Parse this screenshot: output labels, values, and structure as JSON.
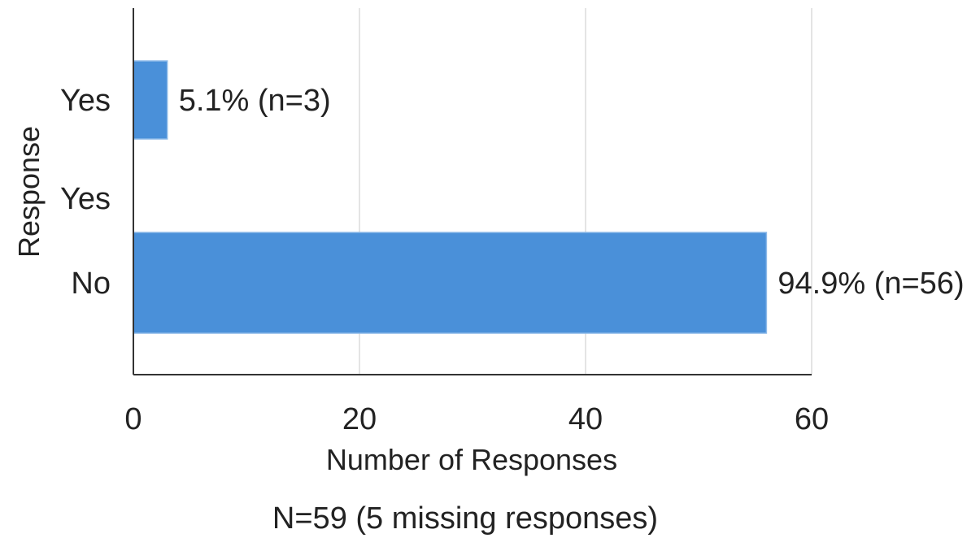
{
  "chart_data": {
    "type": "bar",
    "orientation": "horizontal",
    "categories": [
      "Yes",
      "Yes",
      "No"
    ],
    "values": [
      3,
      null,
      56
    ],
    "data_labels": [
      "5.1% (n=3)",
      "",
      "94.9% (n=56)"
    ],
    "xlabel": "Number of Responses",
    "ylabel": "Response",
    "xlim": [
      0,
      60
    ],
    "xticks": [
      0,
      20,
      40,
      60
    ],
    "grid": "vertical",
    "legend": "none",
    "bar_color": "#4a90d9",
    "footnote": "N=59 (5 missing responses)"
  }
}
